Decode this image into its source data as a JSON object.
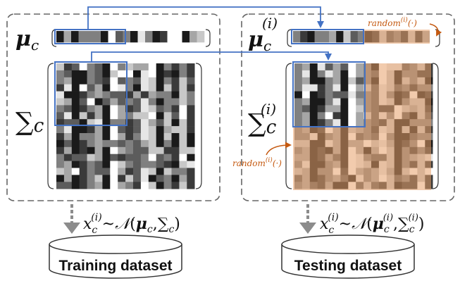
{
  "left_panel": {
    "mean_symbol": "μ",
    "mean_sub": "c",
    "cov_symbol": "∑",
    "cov_sub": "c"
  },
  "right_panel": {
    "mean_symbol": "μ",
    "mean_sub": "c",
    "mean_sup": "(i)",
    "cov_symbol": "∑",
    "cov_sub": "c",
    "cov_sup": "(i)",
    "random_label": "random",
    "random_sup": "(i)",
    "random_arg": "(·)"
  },
  "formulas": {
    "train": {
      "x": "x",
      "sub": "c",
      "sup": "(i)",
      "tilde": "~",
      "normal": "𝒩",
      "open": "(",
      "mu": "μ",
      "mu_sub": "c",
      "comma": ",",
      "sigma": "∑",
      "sigma_sub": "c",
      "close": ")"
    },
    "test": {
      "x": "x",
      "sub": "c",
      "sup": "(i)",
      "tilde": "~",
      "normal": "𝒩",
      "open": "(",
      "mu": "μ",
      "mu_sub": "c",
      "mu_sup": "(i)",
      "comma": ",",
      "sigma": "∑",
      "sigma_sub": "c",
      "sigma_sup": "(i)",
      "close": ")"
    }
  },
  "datasets": {
    "training": "Training dataset",
    "testing": "Testing dataset"
  },
  "colors": {
    "highlight_blue": "#4472C4",
    "random_orange": "#C55A11",
    "random_fill": "#E8A06A",
    "panel_border": "#666666",
    "arrow_gray": "#8C8C8C"
  },
  "icons": {
    "flow_arrow": "arrow-right-down-icon",
    "sample_arrow": "dashed-arrow-down-icon",
    "database": "cylinder-database-icon"
  }
}
